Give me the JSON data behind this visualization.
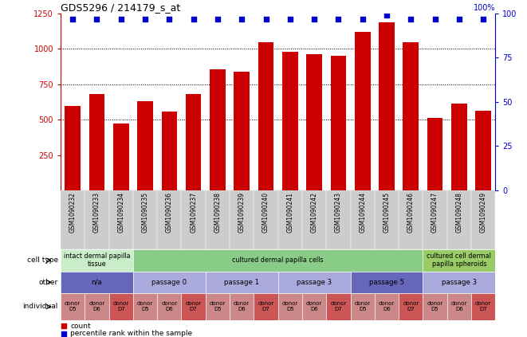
{
  "title": "GDS5296 / 214179_s_at",
  "samples": [
    "GSM1090232",
    "GSM1090233",
    "GSM1090234",
    "GSM1090235",
    "GSM1090236",
    "GSM1090237",
    "GSM1090238",
    "GSM1090239",
    "GSM1090240",
    "GSM1090241",
    "GSM1090242",
    "GSM1090243",
    "GSM1090244",
    "GSM1090245",
    "GSM1090246",
    "GSM1090247",
    "GSM1090248",
    "GSM1090249"
  ],
  "counts": [
    595,
    680,
    475,
    630,
    560,
    680,
    855,
    840,
    1045,
    980,
    960,
    950,
    1120,
    1185,
    1045,
    510,
    615,
    565
  ],
  "percentile": [
    97,
    97,
    97,
    97,
    97,
    97,
    97,
    97,
    97,
    97,
    97,
    97,
    97,
    99,
    97,
    97,
    97,
    97
  ],
  "bar_color": "#cc0000",
  "dot_color": "#0000cc",
  "ylim_left": [
    0,
    1250
  ],
  "ylim_right": [
    0,
    100
  ],
  "yticks_left": [
    250,
    500,
    750,
    1000,
    1250
  ],
  "yticks_right": [
    0,
    25,
    50,
    75,
    100
  ],
  "cell_type_groups": [
    {
      "label": "intact dermal papilla\ntissue",
      "start": 0,
      "end": 3,
      "color": "#c8edc8"
    },
    {
      "label": "cultured dermal papilla cells",
      "start": 3,
      "end": 15,
      "color": "#88cc88"
    },
    {
      "label": "cultured cell dermal\npapilla spheroids",
      "start": 15,
      "end": 18,
      "color": "#99cc66"
    }
  ],
  "other_groups": [
    {
      "label": "n/a",
      "start": 0,
      "end": 3,
      "color": "#6666bb"
    },
    {
      "label": "passage 0",
      "start": 3,
      "end": 6,
      "color": "#aaaadd"
    },
    {
      "label": "passage 1",
      "start": 6,
      "end": 9,
      "color": "#aaaadd"
    },
    {
      "label": "passage 3",
      "start": 9,
      "end": 12,
      "color": "#aaaadd"
    },
    {
      "label": "passage 5",
      "start": 12,
      "end": 15,
      "color": "#6666bb"
    },
    {
      "label": "passage 3",
      "start": 15,
      "end": 18,
      "color": "#aaaadd"
    }
  ],
  "individual_groups": [
    {
      "label": "donor\nD5",
      "start": 0,
      "end": 1,
      "color": "#cc8888"
    },
    {
      "label": "donor\nD6",
      "start": 1,
      "end": 2,
      "color": "#cc8888"
    },
    {
      "label": "donor\nD7",
      "start": 2,
      "end": 3,
      "color": "#cc5555"
    },
    {
      "label": "donor\nD5",
      "start": 3,
      "end": 4,
      "color": "#cc8888"
    },
    {
      "label": "donor\nD6",
      "start": 4,
      "end": 5,
      "color": "#cc8888"
    },
    {
      "label": "donor\nD7",
      "start": 5,
      "end": 6,
      "color": "#cc5555"
    },
    {
      "label": "donor\nD5",
      "start": 6,
      "end": 7,
      "color": "#cc8888"
    },
    {
      "label": "donor\nD6",
      "start": 7,
      "end": 8,
      "color": "#cc8888"
    },
    {
      "label": "donor\nD7",
      "start": 8,
      "end": 9,
      "color": "#cc5555"
    },
    {
      "label": "donor\nD5",
      "start": 9,
      "end": 10,
      "color": "#cc8888"
    },
    {
      "label": "donor\nD6",
      "start": 10,
      "end": 11,
      "color": "#cc8888"
    },
    {
      "label": "donor\nD7",
      "start": 11,
      "end": 12,
      "color": "#cc5555"
    },
    {
      "label": "donor\nD5",
      "start": 12,
      "end": 13,
      "color": "#cc8888"
    },
    {
      "label": "donor\nD6",
      "start": 13,
      "end": 14,
      "color": "#cc8888"
    },
    {
      "label": "donor\nD7",
      "start": 14,
      "end": 15,
      "color": "#cc5555"
    },
    {
      "label": "donor\nD5",
      "start": 15,
      "end": 16,
      "color": "#cc8888"
    },
    {
      "label": "donor\nD6",
      "start": 16,
      "end": 17,
      "color": "#cc8888"
    },
    {
      "label": "donor\nD7",
      "start": 17,
      "end": 18,
      "color": "#cc5555"
    }
  ],
  "row_labels": [
    "cell type",
    "other",
    "individual"
  ],
  "background_color": "#ffffff",
  "xtick_bg_color": "#cccccc"
}
